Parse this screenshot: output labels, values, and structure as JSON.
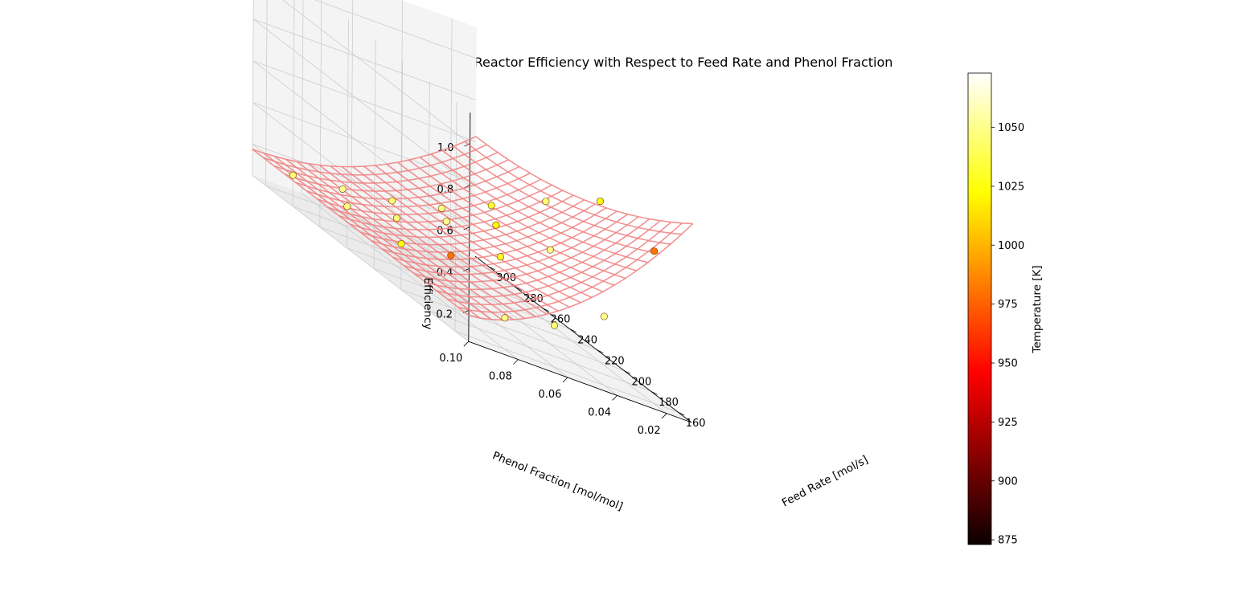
{
  "chart_data": {
    "type": "scatter",
    "title": "Reactor Efficiency with Respect to Feed Rate and Phenol Fraction",
    "xlabel": "Feed Rate [mol/s]",
    "ylabel": "Phenol Fraction [mol/mol]",
    "zlabel": "Efficiency",
    "xlim": [
      150,
      310
    ],
    "ylim": [
      0.01,
      0.1
    ],
    "zlim": [
      0.05,
      1.15
    ],
    "x_ticks": [
      "160",
      "180",
      "200",
      "220",
      "240",
      "260",
      "280",
      "300"
    ],
    "y_ticks": [
      "0.02",
      "0.04",
      "0.06",
      "0.08",
      "0.10"
    ],
    "z_ticks": [
      "0.2",
      "0.4",
      "0.6",
      "0.8",
      "1.0"
    ],
    "grid": true,
    "colorbar": {
      "label": "Temperature [K]",
      "colormap": "hot",
      "range": [
        873,
        1073
      ],
      "ticks": [
        "875",
        "900",
        "925",
        "950",
        "975",
        "1000",
        "1025",
        "1050"
      ]
    },
    "surface": {
      "name": "",
      "color": "#f08080",
      "x_range": [
        150,
        310
      ],
      "y_range": [
        0.01,
        0.1
      ]
    },
    "points": [
      {
        "feed": 160,
        "phenol": 0.02,
        "efficiency": 0.78,
        "temperature": 980
      },
      {
        "feed": 160,
        "phenol": 0.04,
        "efficiency": 0.38,
        "temperature": 1050
      },
      {
        "feed": 160,
        "phenol": 0.06,
        "efficiency": 0.25,
        "temperature": 1045
      },
      {
        "feed": 160,
        "phenol": 0.08,
        "efficiency": 0.2,
        "temperature": 1048
      },
      {
        "feed": 200,
        "phenol": 0.02,
        "efficiency": 0.82,
        "temperature": 1025
      },
      {
        "feed": 200,
        "phenol": 0.04,
        "efficiency": 0.5,
        "temperature": 1048
      },
      {
        "feed": 200,
        "phenol": 0.06,
        "efficiency": 0.38,
        "temperature": 1030
      },
      {
        "feed": 200,
        "phenol": 0.08,
        "efficiency": 0.3,
        "temperature": 980
      },
      {
        "feed": 200,
        "phenol": 0.1,
        "efficiency": 0.27,
        "temperature": 1025
      },
      {
        "feed": 240,
        "phenol": 0.02,
        "efficiency": 0.62,
        "temperature": 1045
      },
      {
        "feed": 240,
        "phenol": 0.04,
        "efficiency": 0.42,
        "temperature": 1020
      },
      {
        "feed": 240,
        "phenol": 0.06,
        "efficiency": 0.35,
        "temperature": 1050
      },
      {
        "feed": 240,
        "phenol": 0.08,
        "efficiency": 0.28,
        "temperature": 1045
      },
      {
        "feed": 240,
        "phenol": 0.1,
        "efficiency": 0.25,
        "temperature": 1048
      },
      {
        "feed": 280,
        "phenol": 0.02,
        "efficiency": 0.4,
        "temperature": 1030
      },
      {
        "feed": 280,
        "phenol": 0.04,
        "efficiency": 0.3,
        "temperature": 1048
      },
      {
        "feed": 280,
        "phenol": 0.06,
        "efficiency": 0.25,
        "temperature": 1045
      },
      {
        "feed": 280,
        "phenol": 0.08,
        "efficiency": 0.22,
        "temperature": 1050
      },
      {
        "feed": 280,
        "phenol": 0.1,
        "efficiency": 0.2,
        "temperature": 1045
      }
    ]
  }
}
